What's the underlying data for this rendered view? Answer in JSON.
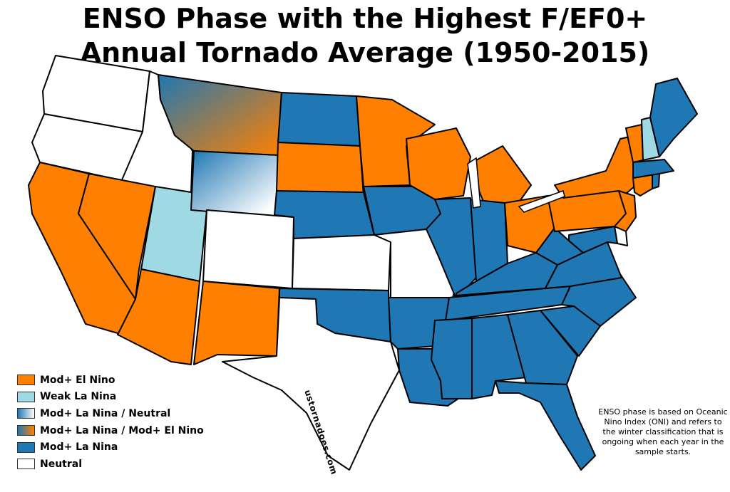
{
  "title_line1": "ENSO Phase with the Highest F/EF0+",
  "title_line2": "Annual Tornado Average (1950-2015)",
  "colors": {
    "el_nino": "#ff8000",
    "weak_la_nina": "#9fd9e3",
    "la_nina": "#1f77b4",
    "neutral": "#ffffff"
  },
  "legend": [
    {
      "label": "Mod+ El Nino",
      "swatch": "el_nino"
    },
    {
      "label": "Weak La Nina",
      "swatch": "weak_la_nina"
    },
    {
      "label": "Mod+ La Nina / Neutral",
      "swatch": "grad_la_nina_neutral"
    },
    {
      "label": "Mod+ La Nina / Mod+ El Nino",
      "swatch": "grad_la_nina_el_nino"
    },
    {
      "label": "Mod+ La Nina",
      "swatch": "la_nina"
    },
    {
      "label": "Neutral",
      "swatch": "neutral"
    }
  ],
  "note": "ENSO phase is based on Oceanic Nino Index (ONI) and refers to the winter classification that is ongoing when each year in the sample starts.",
  "watermark": "ustornadoes.com",
  "states": {
    "WA": "neutral",
    "OR": "neutral",
    "ID": "neutral",
    "CA": "el_nino",
    "NV": "el_nino",
    "UT": "weak_la_nina",
    "AZ": "el_nino",
    "MT": "grad_la_nina_el_nino",
    "WY": "grad_la_nina_neutral",
    "CO": "neutral",
    "NM": "el_nino",
    "ND": "la_nina",
    "SD": "el_nino",
    "NE": "la_nina",
    "KS": "neutral",
    "OK": "la_nina",
    "TX": "neutral",
    "MN": "el_nino",
    "IA": "la_nina",
    "MO": "neutral",
    "AR": "la_nina",
    "LA": "la_nina",
    "WI": "el_nino",
    "IL": "la_nina",
    "MI": "el_nino",
    "IN": "la_nina",
    "OH": "el_nino",
    "KY": "la_nina",
    "TN": "la_nina",
    "MS": "la_nina",
    "AL": "la_nina",
    "GA": "la_nina",
    "FL": "la_nina",
    "SC": "la_nina",
    "NC": "la_nina",
    "VA": "la_nina",
    "WV": "la_nina",
    "PA": "el_nino",
    "NY": "el_nino",
    "NJ": "el_nino",
    "DE": "neutral",
    "MD": "la_nina",
    "CT": "el_nino",
    "RI": "la_nina",
    "MA": "la_nina",
    "VT": "el_nino",
    "NH": "weak_la_nina",
    "ME": "la_nina"
  }
}
